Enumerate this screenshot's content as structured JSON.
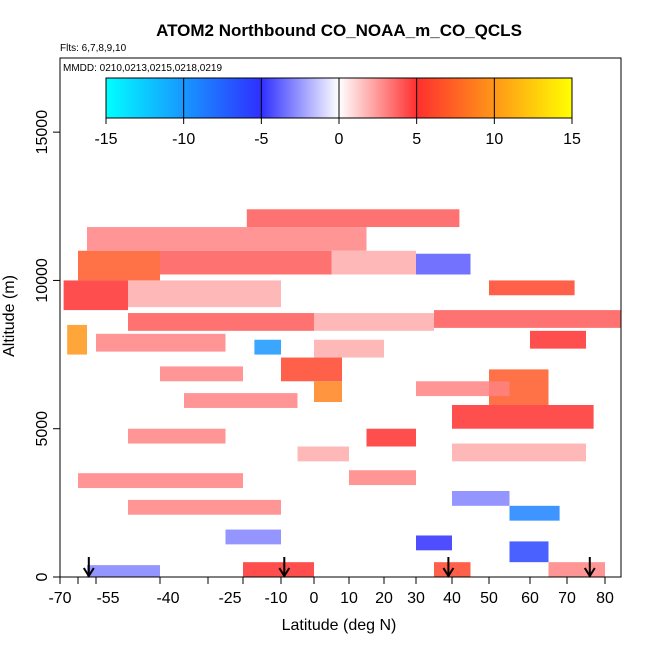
{
  "chart_data": {
    "type": "heatmap",
    "title": "ATOM2 Northbound CO_NOAA_m_CO_QCLS",
    "flights_label": "Flts: 6,7,8,9,10",
    "dates_label": "MMDD: 0210,0213,0215,0218,0219",
    "xlabel": "Latitude (deg N)",
    "ylabel": "Altitude (m)",
    "xlim": [
      -70,
      82
    ],
    "ylim": [
      0,
      17500
    ],
    "x_ticks": [
      -70,
      -60,
      -50,
      -40,
      -30,
      -20,
      -10,
      0,
      10,
      20,
      30,
      40,
      50,
      60,
      70,
      80
    ],
    "x_tick_labels": [
      "-70",
      "-55",
      "-40",
      "-25",
      "-10",
      "0",
      "10",
      "20",
      "30",
      "40",
      "50",
      "60",
      "70",
      "80"
    ],
    "x_tick_label_values": [
      -70,
      -55,
      -40,
      -25,
      -10,
      0,
      10,
      20,
      30,
      40,
      50,
      60,
      70,
      80
    ],
    "y_ticks": [
      0,
      5000,
      10000,
      15000
    ],
    "y_tick_labels": [
      "0",
      "5000",
      "10000",
      "15000"
    ],
    "colorbar": {
      "range": [
        -15,
        15
      ],
      "tick_labels": [
        "-15",
        "-10",
        "-5",
        "0",
        "5",
        "10",
        "15"
      ],
      "tick_values": [
        -15,
        -10,
        -5,
        0,
        5,
        10,
        15
      ],
      "colors": [
        "#00ffff",
        "#2f2fff",
        "#ffffff",
        "#ff2f2f",
        "#ffff00"
      ]
    },
    "profile_markers_lat": [
      -54,
      -9,
      39,
      76
    ],
    "cells": [
      {
        "lat0": -19,
        "lat1": 42,
        "alt0": 11800,
        "alt1": 12400,
        "v": 4
      },
      {
        "lat0": -55,
        "lat1": 15,
        "alt0": 11000,
        "alt1": 11800,
        "v": 3
      },
      {
        "lat0": -60,
        "lat1": -40,
        "alt0": 10000,
        "alt1": 11000,
        "v": 7
      },
      {
        "lat0": -40,
        "lat1": 5,
        "alt0": 10200,
        "alt1": 11000,
        "v": 4
      },
      {
        "lat0": 5,
        "lat1": 30,
        "alt0": 10200,
        "alt1": 11000,
        "v": 2
      },
      {
        "lat0": 30,
        "lat1": 45,
        "alt0": 10200,
        "alt1": 10900,
        "v": -4
      },
      {
        "lat0": -68,
        "lat1": -45,
        "alt0": 9000,
        "alt1": 10000,
        "v": 5
      },
      {
        "lat0": -45,
        "lat1": -10,
        "alt0": 9100,
        "alt1": 10000,
        "v": 2
      },
      {
        "lat0": 50,
        "lat1": 72,
        "alt0": 9500,
        "alt1": 10000,
        "v": 6
      },
      {
        "lat0": -45,
        "lat1": 0,
        "alt0": 8300,
        "alt1": 8900,
        "v": 4
      },
      {
        "lat0": 0,
        "lat1": 35,
        "alt0": 8300,
        "alt1": 8900,
        "v": 2
      },
      {
        "lat0": 35,
        "lat1": 82,
        "alt0": 8400,
        "alt1": 9000,
        "v": 4
      },
      {
        "lat0": -66,
        "lat1": -55,
        "alt0": 7500,
        "alt1": 8500,
        "v": 10
      },
      {
        "lat0": -50,
        "lat1": -25,
        "alt0": 7600,
        "alt1": 8200,
        "v": 3
      },
      {
        "lat0": -17,
        "lat1": -10,
        "alt0": 7500,
        "alt1": 8000,
        "v": -10
      },
      {
        "lat0": 0,
        "lat1": 20,
        "alt0": 7400,
        "alt1": 8000,
        "v": 2
      },
      {
        "lat0": 60,
        "lat1": 75,
        "alt0": 7700,
        "alt1": 8300,
        "v": 5
      },
      {
        "lat0": -10,
        "lat1": 8,
        "alt0": 6600,
        "alt1": 7400,
        "v": 6
      },
      {
        "lat0": -40,
        "lat1": -20,
        "alt0": 6600,
        "alt1": 7100,
        "v": 3
      },
      {
        "lat0": 50,
        "lat1": 65,
        "alt0": 5800,
        "alt1": 7000,
        "v": 7
      },
      {
        "lat0": 0,
        "lat1": 8,
        "alt0": 5900,
        "alt1": 6600,
        "v": 9
      },
      {
        "lat0": -35,
        "lat1": -5,
        "alt0": 5700,
        "alt1": 6200,
        "v": 3
      },
      {
        "lat0": 40,
        "lat1": 77,
        "alt0": 5000,
        "alt1": 5800,
        "v": 5
      },
      {
        "lat0": 30,
        "lat1": 55,
        "alt0": 6100,
        "alt1": 6600,
        "v": 3
      },
      {
        "lat0": -45,
        "lat1": -25,
        "alt0": 4500,
        "alt1": 5000,
        "v": 3
      },
      {
        "lat0": 15,
        "lat1": 30,
        "alt0": 4400,
        "alt1": 5000,
        "v": 5
      },
      {
        "lat0": -5,
        "lat1": 10,
        "alt0": 3900,
        "alt1": 4400,
        "v": 2
      },
      {
        "lat0": 40,
        "lat1": 75,
        "alt0": 3900,
        "alt1": 4500,
        "v": 2
      },
      {
        "lat0": -60,
        "lat1": -20,
        "alt0": 3000,
        "alt1": 3500,
        "v": 3
      },
      {
        "lat0": 10,
        "lat1": 30,
        "alt0": 3100,
        "alt1": 3600,
        "v": 3
      },
      {
        "lat0": -45,
        "lat1": -10,
        "alt0": 2100,
        "alt1": 2600,
        "v": 3
      },
      {
        "lat0": 55,
        "lat1": 68,
        "alt0": 1900,
        "alt1": 2400,
        "v": -9
      },
      {
        "lat0": 40,
        "lat1": 55,
        "alt0": 2400,
        "alt1": 2900,
        "v": -3
      },
      {
        "lat0": -25,
        "lat1": -10,
        "alt0": 1100,
        "alt1": 1600,
        "v": -3
      },
      {
        "lat0": 30,
        "lat1": 40,
        "alt0": 900,
        "alt1": 1400,
        "v": -5
      },
      {
        "lat0": 55,
        "lat1": 65,
        "alt0": 500,
        "alt1": 1200,
        "v": -6
      },
      {
        "lat0": -20,
        "lat1": 0,
        "alt0": 0,
        "alt1": 500,
        "v": 5
      },
      {
        "lat0": 35,
        "lat1": 45,
        "alt0": 0,
        "alt1": 500,
        "v": 6
      },
      {
        "lat0": -55,
        "lat1": -40,
        "alt0": 0,
        "alt1": 400,
        "v": -3
      },
      {
        "lat0": 65,
        "lat1": 80,
        "alt0": 0,
        "alt1": 500,
        "v": 3
      }
    ]
  }
}
